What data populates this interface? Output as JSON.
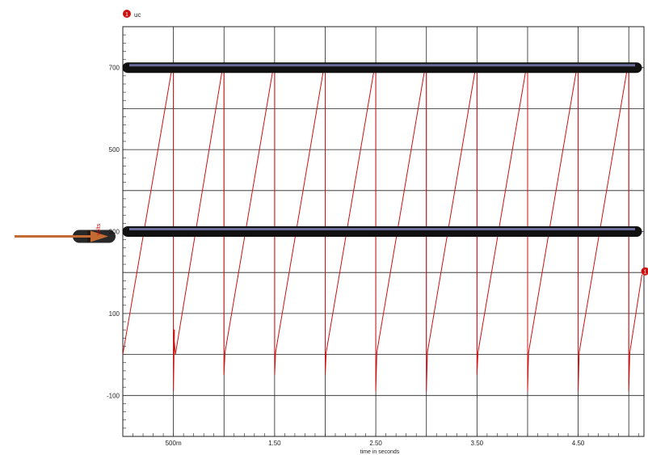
{
  "chart_data": {
    "type": "line",
    "legend": {
      "label": "uc",
      "marker": "1",
      "placement": "top-left"
    },
    "xlabel": "time in seconds",
    "ylabel": "volts",
    "xlim": [
      0.0,
      5.15
    ],
    "ylim": [
      -200,
      800
    ],
    "grid": true,
    "x_ticks": [
      {
        "value": 0.5,
        "label": "500m"
      },
      {
        "value": 1.5,
        "label": "1.50"
      },
      {
        "value": 2.5,
        "label": "2.50"
      },
      {
        "value": 3.5,
        "label": "3.50"
      },
      {
        "value": 4.5,
        "label": "4.50"
      }
    ],
    "y_ticks": [
      {
        "value": 700,
        "label": "700"
      },
      {
        "value": 500,
        "label": "500"
      },
      {
        "value": 300,
        "label": "300"
      },
      {
        "value": 100,
        "label": "100"
      },
      {
        "value": -100,
        "label": "-100"
      }
    ],
    "series": [
      {
        "name": "uc",
        "color": "#cc1111",
        "x": [
          0.0,
          0.48,
          0.5,
          0.5,
          0.51,
          0.5,
          0.52,
          0.98,
          1.0,
          1.0,
          1.01,
          1.48,
          1.5,
          1.5,
          1.51,
          1.98,
          2.0,
          2.0,
          2.01,
          2.48,
          2.5,
          2.5,
          2.51,
          2.98,
          3.0,
          3.0,
          3.01,
          3.48,
          3.5,
          3.5,
          3.51,
          3.98,
          4.0,
          4.0,
          4.01,
          4.48,
          4.5,
          4.5,
          4.51,
          4.98,
          5.0,
          5.0,
          5.01,
          5.13
        ],
        "y": [
          0,
          690,
          690,
          -90,
          60,
          60,
          0,
          690,
          690,
          -50,
          5,
          690,
          690,
          -50,
          5,
          690,
          690,
          -50,
          5,
          690,
          690,
          -90,
          5,
          690,
          690,
          -90,
          5,
          690,
          690,
          -50,
          5,
          690,
          690,
          -90,
          5,
          690,
          690,
          -90,
          5,
          690,
          690,
          -90,
          5,
          195
        ]
      }
    ],
    "annotations": [
      {
        "type": "band",
        "y": 700,
        "color": "#111111",
        "fill": "#6b6b9a"
      },
      {
        "type": "band",
        "y": 300,
        "color": "#111111",
        "fill": "#6b6b9a"
      },
      {
        "type": "arrow",
        "y": 300,
        "color": "#c46a33"
      },
      {
        "type": "end-marker",
        "label": "1",
        "x": 5.13,
        "y": 195,
        "color": "#cc1111"
      }
    ]
  }
}
